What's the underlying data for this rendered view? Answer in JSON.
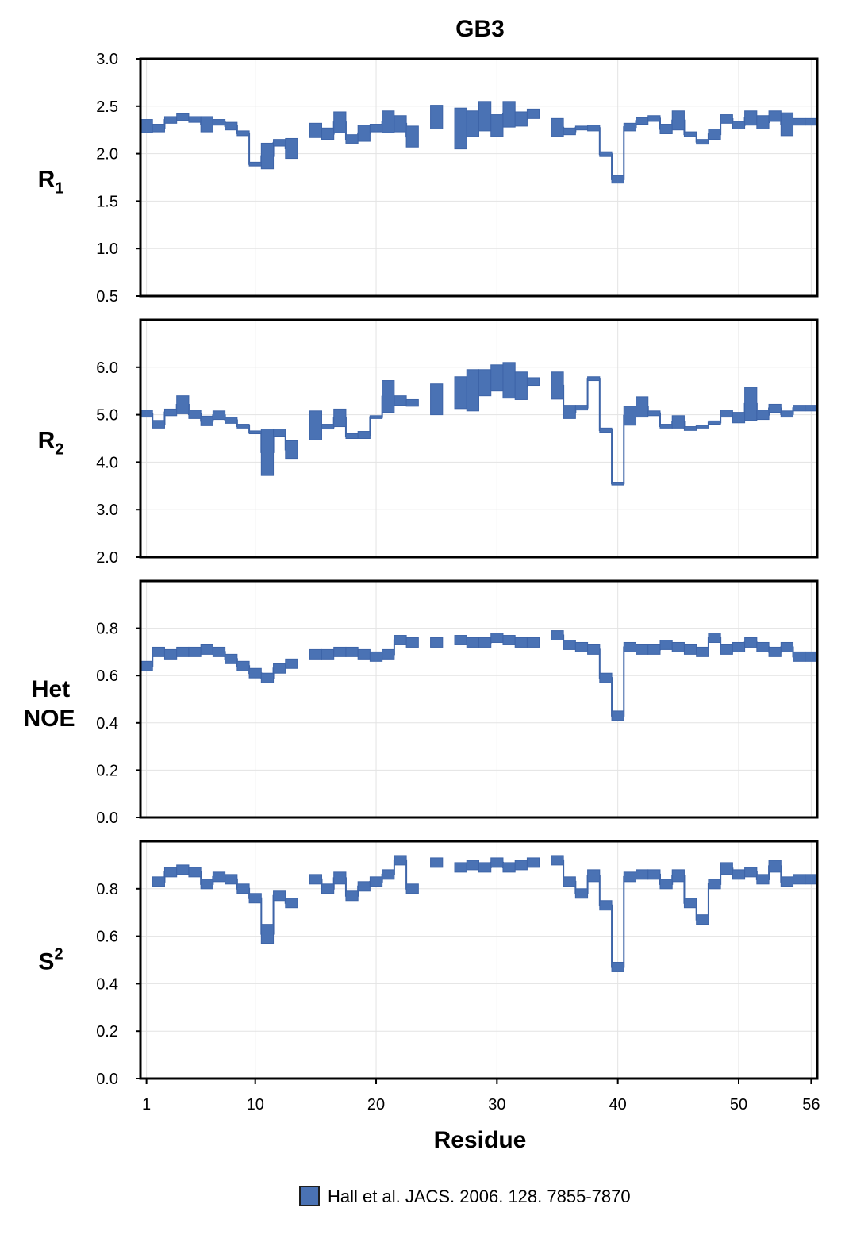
{
  "chart_data": {
    "type": "bar",
    "style": "stepped-range",
    "title": "GB3",
    "xlabel": "Residue",
    "x_ticks": [
      1,
      10,
      20,
      30,
      40,
      50,
      56
    ],
    "xlim": [
      0.5,
      56.5
    ],
    "grid": true,
    "legend": {
      "placement": "bottom-center",
      "entries": [
        "Hall et al. JACS. 2006. 128. 7855-7870"
      ]
    },
    "colors": {
      "fill": "#4a72b4",
      "stroke": "#3d64a8",
      "grid": "#e3e3e3",
      "frame": "#000000"
    },
    "panels": [
      {
        "ylabel_main": "R",
        "ylabel_sub": "1",
        "ylabel_sup": "",
        "ylabel_line2": "",
        "ylim": [
          0.5,
          3.0
        ],
        "y_ticks": [
          "0.5",
          "1.0",
          "1.5",
          "2.0",
          "2.5",
          "3.0"
        ],
        "series": {
          "name": "Hall et al. JACS. 2006. 128. 7855-7870",
          "residues": [
            1,
            2,
            3,
            4,
            5,
            6,
            7,
            8,
            9,
            10,
            11,
            12,
            13,
            14,
            15,
            16,
            17,
            18,
            19,
            20,
            21,
            22,
            23,
            24,
            25,
            26,
            27,
            28,
            29,
            30,
            31,
            32,
            33,
            34,
            35,
            36,
            37,
            38,
            39,
            40,
            41,
            42,
            43,
            44,
            45,
            46,
            47,
            48,
            49,
            50,
            51,
            52,
            53,
            54,
            55,
            56
          ],
          "low": [
            2.22,
            2.23,
            2.32,
            2.35,
            2.33,
            2.23,
            2.3,
            2.25,
            2.19,
            1.87,
            1.84,
            2.08,
            1.95,
            null,
            2.17,
            2.15,
            2.22,
            2.11,
            2.13,
            2.23,
            2.22,
            2.23,
            2.07,
            null,
            2.26,
            null,
            2.05,
            2.18,
            2.24,
            2.18,
            2.28,
            2.29,
            2.37,
            null,
            2.18,
            2.2,
            2.25,
            2.24,
            1.97,
            1.69,
            2.24,
            2.31,
            2.34,
            2.21,
            2.25,
            2.18,
            2.1,
            2.15,
            2.32,
            2.26,
            2.3,
            2.26,
            2.34,
            2.19,
            2.3,
            2.3
          ],
          "high": [
            2.36,
            2.31,
            2.39,
            2.42,
            2.39,
            2.39,
            2.36,
            2.33,
            2.24,
            1.91,
            2.11,
            2.15,
            2.16,
            null,
            2.32,
            2.27,
            2.44,
            2.2,
            2.3,
            2.31,
            2.45,
            2.4,
            2.29,
            null,
            2.51,
            null,
            2.48,
            2.45,
            2.55,
            2.41,
            2.55,
            2.44,
            2.47,
            null,
            2.37,
            2.27,
            2.29,
            2.3,
            2.02,
            1.77,
            2.32,
            2.38,
            2.4,
            2.31,
            2.45,
            2.23,
            2.15,
            2.26,
            2.41,
            2.34,
            2.45,
            2.4,
            2.45,
            2.43,
            2.37,
            2.37
          ]
        }
      },
      {
        "ylabel_main": "R",
        "ylabel_sub": "2",
        "ylabel_sup": "",
        "ylabel_line2": "",
        "ylim": [
          2.0,
          7.0
        ],
        "y_ticks": [
          "2.0",
          "3.0",
          "4.0",
          "5.0",
          "6.0"
        ],
        "series": {
          "name": "Hall et al. JACS. 2006. 128. 7855-7870",
          "residues": [
            1,
            2,
            3,
            4,
            5,
            6,
            7,
            8,
            9,
            10,
            11,
            12,
            13,
            14,
            15,
            16,
            17,
            18,
            19,
            20,
            21,
            22,
            23,
            24,
            25,
            26,
            27,
            28,
            29,
            30,
            31,
            32,
            33,
            34,
            35,
            36,
            37,
            38,
            39,
            40,
            41,
            42,
            43,
            44,
            45,
            46,
            47,
            48,
            49,
            50,
            51,
            52,
            53,
            54,
            55,
            56
          ],
          "low": [
            4.95,
            4.72,
            4.98,
            5.02,
            4.92,
            4.77,
            4.9,
            4.82,
            4.72,
            4.6,
            3.72,
            4.55,
            4.08,
            null,
            4.47,
            4.7,
            4.75,
            4.5,
            4.5,
            4.92,
            5.05,
            5.2,
            5.18,
            null,
            5.0,
            null,
            5.13,
            5.08,
            5.4,
            5.5,
            5.35,
            5.32,
            5.62,
            null,
            5.33,
            4.92,
            5.1,
            5.72,
            4.63,
            3.52,
            4.78,
            4.95,
            4.98,
            4.72,
            4.72,
            4.67,
            4.72,
            4.8,
            4.95,
            4.83,
            4.88,
            4.9,
            5.05,
            4.95,
            5.08,
            5.08
          ],
          "high": [
            5.1,
            4.88,
            5.12,
            5.4,
            5.1,
            4.97,
            5.08,
            4.95,
            4.8,
            4.66,
            4.7,
            4.7,
            4.45,
            null,
            5.08,
            4.8,
            5.12,
            4.6,
            4.65,
            4.98,
            5.72,
            5.4,
            5.32,
            null,
            5.65,
            null,
            5.8,
            5.95,
            5.95,
            6.05,
            6.1,
            5.9,
            5.78,
            null,
            5.9,
            5.2,
            5.2,
            5.8,
            4.72,
            3.58,
            5.18,
            5.38,
            5.08,
            4.8,
            4.98,
            4.75,
            4.78,
            4.87,
            5.1,
            5.05,
            5.58,
            5.1,
            5.22,
            5.08,
            5.2,
            5.2
          ]
        }
      },
      {
        "ylabel_main": "Het",
        "ylabel_sub": "",
        "ylabel_sup": "",
        "ylabel_line2": "NOE",
        "ylim": [
          0.0,
          1.0
        ],
        "y_ticks": [
          "0.0",
          "0.2",
          "0.4",
          "0.6",
          "0.8"
        ],
        "series": {
          "name": "Hall et al. JACS. 2006. 128. 7855-7870",
          "residues": [
            1,
            2,
            3,
            4,
            5,
            6,
            7,
            8,
            9,
            10,
            11,
            12,
            13,
            14,
            15,
            16,
            17,
            18,
            19,
            20,
            21,
            22,
            23,
            24,
            25,
            26,
            27,
            28,
            29,
            30,
            31,
            32,
            33,
            34,
            35,
            36,
            37,
            38,
            39,
            40,
            41,
            42,
            43,
            44,
            45,
            46,
            47,
            48,
            49,
            50,
            51,
            52,
            53,
            54,
            55,
            56
          ],
          "low": [
            0.62,
            0.68,
            0.67,
            0.68,
            0.68,
            0.69,
            0.68,
            0.65,
            0.62,
            0.59,
            0.57,
            0.61,
            0.63,
            null,
            0.67,
            0.67,
            0.68,
            0.68,
            0.67,
            0.66,
            0.67,
            0.73,
            0.72,
            null,
            0.72,
            null,
            0.73,
            0.72,
            0.72,
            0.74,
            0.73,
            0.72,
            0.72,
            null,
            0.75,
            0.71,
            0.7,
            0.69,
            0.57,
            0.41,
            0.7,
            0.69,
            0.69,
            0.71,
            0.7,
            0.69,
            0.68,
            0.74,
            0.69,
            0.7,
            0.72,
            0.7,
            0.68,
            0.7,
            0.66,
            0.66
          ],
          "high": [
            0.66,
            0.72,
            0.71,
            0.72,
            0.72,
            0.73,
            0.72,
            0.69,
            0.66,
            0.63,
            0.61,
            0.65,
            0.67,
            null,
            0.71,
            0.71,
            0.72,
            0.72,
            0.71,
            0.7,
            0.71,
            0.77,
            0.76,
            null,
            0.76,
            null,
            0.77,
            0.76,
            0.76,
            0.78,
            0.77,
            0.76,
            0.76,
            null,
            0.79,
            0.75,
            0.74,
            0.73,
            0.61,
            0.45,
            0.74,
            0.73,
            0.73,
            0.75,
            0.74,
            0.73,
            0.72,
            0.78,
            0.73,
            0.74,
            0.76,
            0.74,
            0.72,
            0.74,
            0.7,
            0.7
          ]
        }
      },
      {
        "ylabel_main": "S",
        "ylabel_sub": "",
        "ylabel_sup": "2",
        "ylabel_line2": "",
        "ylim": [
          0.0,
          1.0
        ],
        "y_ticks": [
          "0.0",
          "0.2",
          "0.4",
          "0.6",
          "0.8"
        ],
        "series": {
          "name": "Hall et al. JACS. 2006. 128. 7855-7870",
          "residues": [
            1,
            2,
            3,
            4,
            5,
            6,
            7,
            8,
            9,
            10,
            11,
            12,
            13,
            14,
            15,
            16,
            17,
            18,
            19,
            20,
            21,
            22,
            23,
            24,
            25,
            26,
            27,
            28,
            29,
            30,
            31,
            32,
            33,
            34,
            35,
            36,
            37,
            38,
            39,
            40,
            41,
            42,
            43,
            44,
            45,
            46,
            47,
            48,
            49,
            50,
            51,
            52,
            53,
            54,
            55,
            56
          ],
          "low": [
            null,
            0.81,
            0.85,
            0.86,
            0.85,
            0.8,
            0.83,
            0.82,
            0.78,
            0.74,
            0.57,
            0.75,
            0.72,
            null,
            0.82,
            0.78,
            0.82,
            0.75,
            0.79,
            0.81,
            0.84,
            0.9,
            0.78,
            null,
            0.89,
            null,
            0.87,
            0.88,
            0.87,
            0.89,
            0.87,
            0.88,
            0.89,
            null,
            0.9,
            0.81,
            0.76,
            0.83,
            0.71,
            0.45,
            0.83,
            0.84,
            0.84,
            0.8,
            0.83,
            0.72,
            0.65,
            0.8,
            0.86,
            0.84,
            0.85,
            0.82,
            0.87,
            0.81,
            0.82,
            0.82
          ],
          "high": [
            null,
            0.85,
            0.89,
            0.9,
            0.89,
            0.84,
            0.87,
            0.86,
            0.82,
            0.78,
            0.65,
            0.79,
            0.76,
            null,
            0.86,
            0.82,
            0.87,
            0.79,
            0.83,
            0.85,
            0.88,
            0.94,
            0.82,
            null,
            0.93,
            null,
            0.91,
            0.92,
            0.91,
            0.93,
            0.91,
            0.92,
            0.93,
            null,
            0.94,
            0.85,
            0.8,
            0.88,
            0.75,
            0.49,
            0.87,
            0.88,
            0.88,
            0.84,
            0.88,
            0.76,
            0.69,
            0.84,
            0.91,
            0.88,
            0.89,
            0.86,
            0.92,
            0.85,
            0.86,
            0.86
          ]
        }
      }
    ]
  }
}
